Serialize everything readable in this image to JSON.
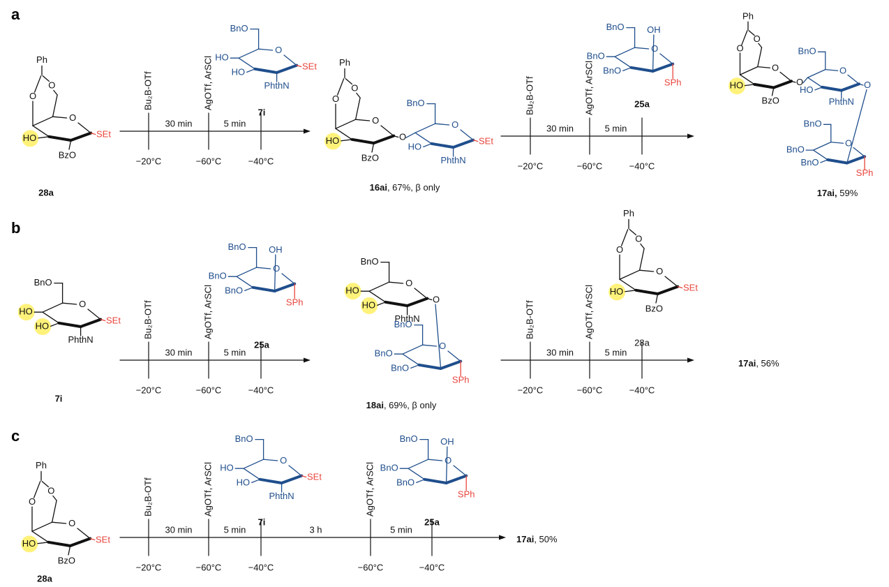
{
  "panels": [
    {
      "label": "a",
      "starting_material": {
        "labels": [
          "Ph",
          "O",
          "O",
          "O",
          "HO",
          "BzO",
          "SEt"
        ],
        "name": "28a"
      },
      "steps": [
        {
          "events": [
            {
              "reagent": "Bu₂B-OTf",
              "temp": "−20°C"
            },
            {
              "reagent": "AgOTf, ArSCl",
              "temp": "−60°C"
            },
            {
              "donor": {
                "labels": [
                  "BnO",
                  "HO",
                  "HO",
                  "O",
                  "SEt",
                  "PhthN"
                ],
                "name": "7i"
              },
              "temp": "−40°C"
            }
          ],
          "intervals": [
            "30 min",
            "5 min"
          ],
          "product": {
            "labels": [
              "Ph",
              "O",
              "O",
              "O",
              "HO",
              "BzO",
              "O",
              "BnO",
              "HO",
              "O",
              "SEt",
              "PhthN"
            ],
            "name": "16ai",
            "yield": ", 67%, β only"
          }
        },
        {
          "events": [
            {
              "reagent": "Bu₂B-OTf",
              "temp": "−20°C"
            },
            {
              "reagent": "AgOTf, ArSCl",
              "temp": "−60°C"
            },
            {
              "donor": {
                "labels": [
                  "BnO",
                  "OH",
                  "BnO",
                  "BnO",
                  "O",
                  "SPh"
                ],
                "name": "25a"
              },
              "temp": "−40°C"
            }
          ],
          "intervals": [
            "30 min",
            "5 min"
          ],
          "product": {
            "labels": [
              "Ph",
              "O",
              "O",
              "O",
              "HO",
              "BzO",
              "O",
              "BnO",
              "HO",
              "O",
              "O",
              "PhthN",
              "BnO",
              "BnO",
              "BnO",
              "O",
              "SPh"
            ],
            "name": "17ai,",
            "yield": " 59%"
          }
        }
      ]
    },
    {
      "label": "b",
      "starting_material": {
        "labels": [
          "BnO",
          "HO",
          "HO",
          "O",
          "SEt",
          "PhthN"
        ],
        "name": "7i"
      },
      "steps": [
        {
          "events": [
            {
              "reagent": "Bu₂B-OTf",
              "temp": "−20°C"
            },
            {
              "reagent": "AgOTf, ArSCl",
              "temp": "−60°C"
            },
            {
              "donor": {
                "labels": [
                  "BnO",
                  "OH",
                  "BnO",
                  "BnO",
                  "O",
                  "SPh"
                ],
                "name": "25a"
              },
              "temp": "−40°C"
            }
          ],
          "intervals": [
            "30 min",
            "5 min"
          ],
          "product": {
            "labels": [
              "BnO",
              "HO",
              "HO",
              "O",
              "O",
              "PhthN",
              "BnO",
              "BnO",
              "BnO",
              "O",
              "SPh"
            ],
            "name": "18ai",
            "yield": ", 69%, β only"
          }
        },
        {
          "events": [
            {
              "reagent": "Bu₂B-OTf",
              "temp": "−20°C"
            },
            {
              "reagent": "AgOTf, ArSCl",
              "temp": "−60°C"
            },
            {
              "donor": {
                "labels": [
                  "Ph",
                  "O",
                  "O",
                  "O",
                  "HO",
                  "BzO",
                  "SEt"
                ],
                "name": "28a"
              },
              "temp": "−40°C"
            }
          ],
          "intervals": [
            "30 min",
            "5 min"
          ],
          "product": {
            "name": "17ai",
            "yield": ", 56%"
          }
        }
      ]
    },
    {
      "label": "c",
      "starting_material": {
        "labels": [
          "Ph",
          "O",
          "O",
          "O",
          "HO",
          "BzO",
          "SEt"
        ],
        "name": "28a"
      },
      "steps": [
        {
          "events": [
            {
              "reagent": "Bu₂B-OTf",
              "temp": "−20°C"
            },
            {
              "reagent": "AgOTf, ArSCl",
              "temp": "−60°C"
            },
            {
              "donor": {
                "labels": [
                  "BnO",
                  "HO",
                  "HO",
                  "O",
                  "SEt",
                  "PhthN"
                ],
                "name": "7i"
              },
              "temp": "−40°C"
            },
            {
              "reagent": "AgOTf, ArSCl",
              "temp": "−60°C"
            },
            {
              "donor": {
                "labels": [
                  "BnO",
                  "OH",
                  "BnO",
                  "BnO",
                  "O",
                  "SPh"
                ],
                "name": "25a"
              },
              "temp": "−40°C"
            }
          ],
          "intervals": [
            "30 min",
            "5 min",
            "3 h",
            "5 min"
          ],
          "product": {
            "name": "17ai",
            "yield": ", 50%"
          }
        }
      ]
    }
  ]
}
